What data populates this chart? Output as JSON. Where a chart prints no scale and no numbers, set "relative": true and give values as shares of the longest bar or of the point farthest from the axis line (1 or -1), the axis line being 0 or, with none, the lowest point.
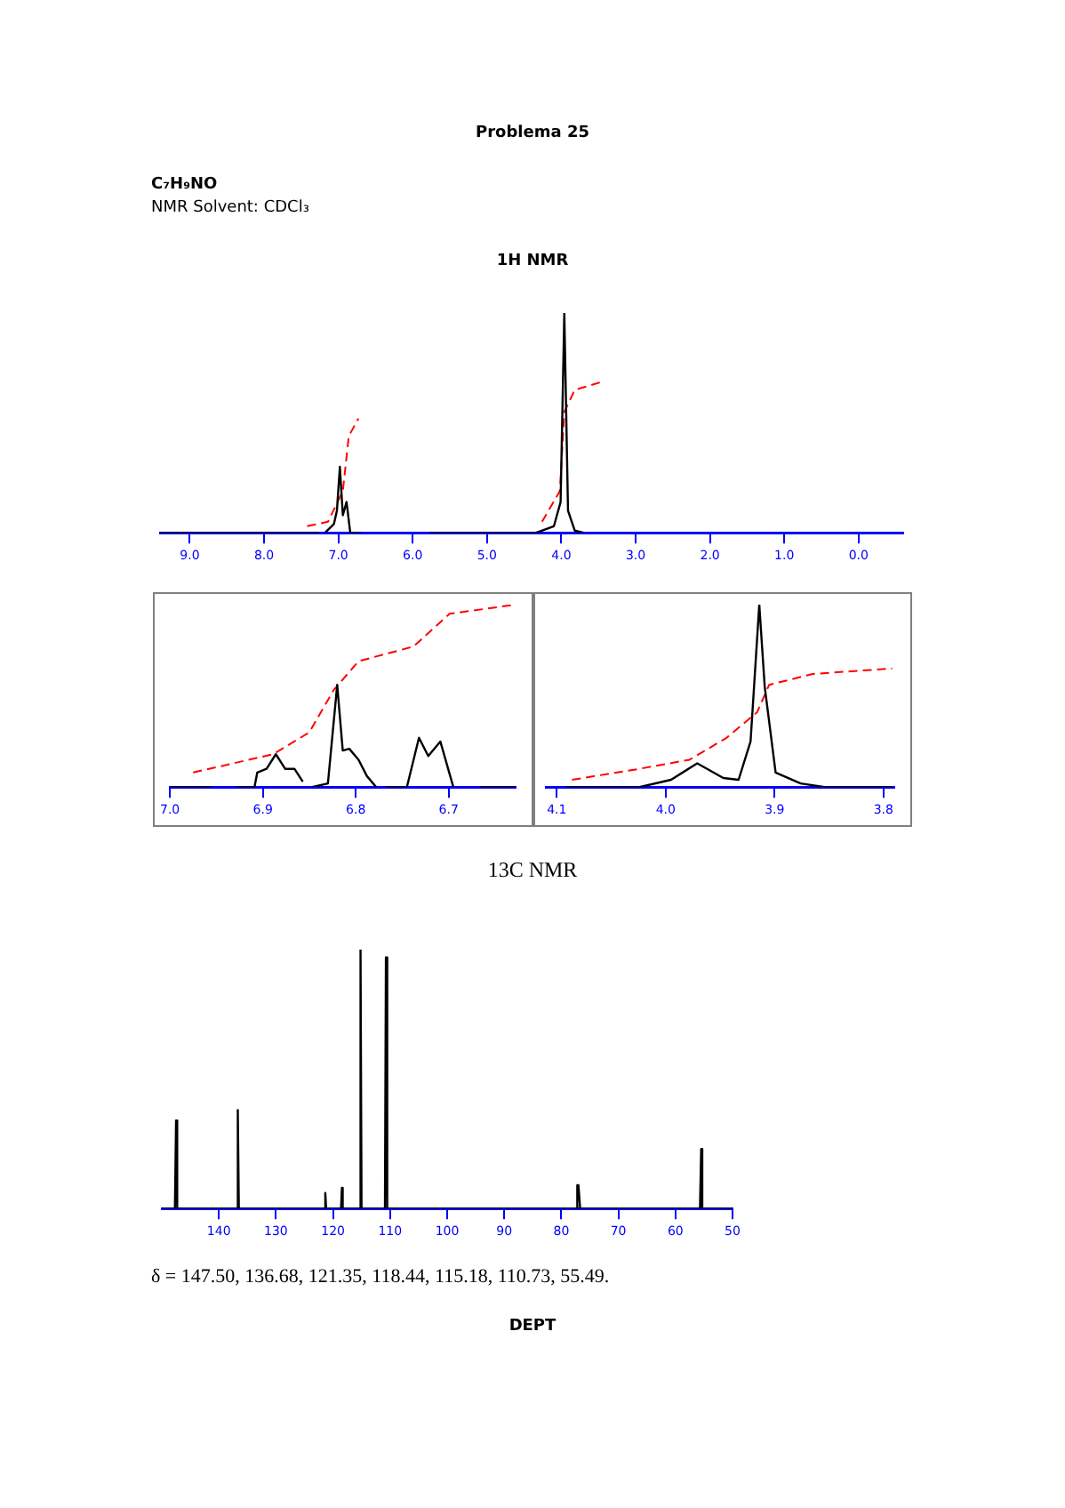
{
  "chart_data": [
    {
      "type": "line",
      "title": "1H NMR",
      "annotations": [
        "Problema 25",
        "C₇H₉NO",
        "NMR Solvent: CDCl₃"
      ],
      "relative": true,
      "tick_labels": "x",
      "grid": false,
      "legend": false,
      "xlim": [
        9.4,
        -0.6
      ],
      "xticks": [
        {
          "value": 9,
          "label": "9.0"
        },
        {
          "value": 8,
          "label": "8.0"
        },
        {
          "value": 7,
          "label": "7.0"
        },
        {
          "value": 6,
          "label": "6.0"
        },
        {
          "value": 5,
          "label": "5.0"
        },
        {
          "value": 4,
          "label": "4.0"
        },
        {
          "value": 3,
          "label": "3.0"
        },
        {
          "value": 2,
          "label": "2.0"
        },
        {
          "value": 1,
          "label": "1.0"
        },
        {
          "value": 0,
          "label": "0.0"
        }
      ],
      "series": [
        {
          "color": "#000000",
          "line_style": "solid",
          "x": [
            9.4,
            7.26,
            7.22,
            7.18,
            7.06,
            7.02,
            6.98,
            6.94,
            6.89,
            6.84,
            6.7,
            6.2,
            5.78,
            4.34,
            4.1,
            4.01,
            3.96,
            3.91,
            3.82,
            3.7
          ],
          "values": [
            0,
            0,
            null,
            0,
            0.04,
            0.1,
            0.3,
            0.08,
            0.14,
            0,
            0,
            null,
            0,
            0,
            0.03,
            0.14,
            1,
            0.1,
            0.01,
            0
          ]
        },
        {
          "color": "#ff0000",
          "line_style": "dashed",
          "x": [
            7.42,
            7.14,
            6.94,
            6.86,
            6.73,
            5.5,
            4.26,
            4.02,
            3.96,
            3.82,
            3.42
          ],
          "values": [
            0.03,
            0.05,
            0.19,
            0.44,
            0.52,
            null,
            0.05,
            0.19,
            0.55,
            0.65,
            0.69
          ]
        }
      ]
    },
    {
      "type": "line",
      "relative": true,
      "tick_labels": "x",
      "grid": false,
      "legend": false,
      "xlim": [
        7.0,
        6.628
      ],
      "xticks": [
        {
          "value": 7,
          "label": "7.0"
        },
        {
          "value": 6.9,
          "label": "6.9"
        },
        {
          "value": 6.8,
          "label": "6.8"
        },
        {
          "value": 6.7,
          "label": "6.7"
        }
      ],
      "series": [
        {
          "color": "#000000",
          "line_style": "solid",
          "x": [
            7.0,
            6.955,
            6.94,
            6.929,
            6.909,
            6.906,
            6.896,
            6.886,
            6.876,
            6.866,
            6.857,
            6.85,
            6.847,
            6.83,
            6.82,
            6.814,
            6.807,
            6.797,
            6.788,
            6.778,
            6.772,
            6.768,
            6.745,
            6.732,
            6.722,
            6.709,
            6.695,
            6.68,
            6.666,
            6.628
          ],
          "values": [
            0,
            0,
            null,
            0,
            0,
            0.08,
            0.1,
            0.18,
            0.1,
            0.1,
            0.03,
            null,
            0,
            0.02,
            0.56,
            0.2,
            0.21,
            0.15,
            0.06,
            0,
            null,
            0,
            0,
            0.27,
            0.17,
            0.25,
            0,
            null,
            0,
            0
          ]
        },
        {
          "color": "#ff0000",
          "line_style": "dashed",
          "x": [
            6.975,
            6.889,
            6.85,
            6.824,
            6.797,
            6.738,
            6.699,
            6.628
          ],
          "values": [
            0.08,
            0.18,
            0.3,
            0.53,
            0.69,
            0.77,
            0.95,
            1.0
          ]
        }
      ]
    },
    {
      "type": "line",
      "relative": true,
      "tick_labels": "x",
      "grid": false,
      "legend": false,
      "xlim": [
        4.11,
        3.79
      ],
      "xticks": [
        {
          "value": 4.1,
          "label": "4.1"
        },
        {
          "value": 4.0,
          "label": "4.0"
        },
        {
          "value": 3.9,
          "label": "3.9"
        },
        {
          "value": 3.8,
          "label": "3.8"
        }
      ],
      "series": [
        {
          "color": "#000000",
          "line_style": "solid",
          "x": [
            4.092,
            4.024,
            3.995,
            3.971,
            3.947,
            3.933,
            3.922,
            3.914,
            3.909,
            3.899,
            3.876,
            3.854,
            3.792
          ],
          "values": [
            0,
            0,
            0.04,
            0.13,
            0.05,
            0.04,
            0.25,
            1,
            0.55,
            0.08,
            0.02,
            0,
            0
          ]
        },
        {
          "color": "#ff0000",
          "line_style": "dashed",
          "x": [
            4.086,
            4.024,
            3.978,
            3.944,
            3.916,
            3.905,
            3.865,
            3.792
          ],
          "values": [
            0.04,
            0.1,
            0.15,
            0.27,
            0.41,
            0.56,
            0.62,
            0.65
          ]
        }
      ]
    },
    {
      "type": "line",
      "title": "13C NMR",
      "annotations": [
        "δ = 147.50, 136.68, 121.35, 118.44, 115.18, 110.73, 55.49.",
        "DEPT"
      ],
      "relative": true,
      "tick_labels": "x",
      "grid": false,
      "legend": false,
      "xlim": [
        150,
        50
      ],
      "xticks": [
        140,
        130,
        120,
        110,
        100,
        90,
        80,
        70,
        60,
        50
      ],
      "series": [
        {
          "color": "#000000",
          "line_style": "solid",
          "x": [
            150,
            147.7,
            147.5,
            147.3,
            136.9,
            136.68,
            136.5,
            121.5,
            121.35,
            121.2,
            118.6,
            118.44,
            118.3,
            115.4,
            115.18,
            115.0,
            110.9,
            110.73,
            110.5,
            77.3,
            77.2,
            77.0,
            76.8,
            76.7,
            55.7,
            55.49,
            55.3,
            50
          ],
          "values": [
            0,
            0,
            0.34,
            0,
            0,
            0.38,
            0,
            0,
            0.06,
            0,
            0,
            0.08,
            0,
            0,
            1,
            0,
            0,
            0.97,
            0,
            0,
            0.09,
            0.09,
            0.09,
            0,
            0,
            0.23,
            0,
            0
          ]
        }
      ]
    }
  ]
}
